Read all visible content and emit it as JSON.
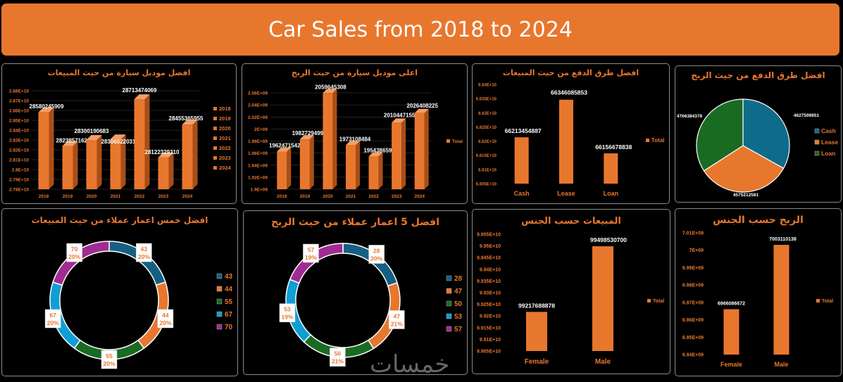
{
  "dashboard_title": "Car Sales from 2018 to 2024",
  "watermark": "خمسات",
  "colors": {
    "accent": "#e8772e",
    "dark_orange": "#a94e17",
    "blue": "#156082",
    "green": "#196b24",
    "cyan": "#0f9ed5",
    "purple": "#a02b93",
    "teal": "#0f6b8a"
  },
  "chart_data": [
    {
      "id": "c1",
      "type": "bar",
      "title": "افضل موديل سيارة من حيث المبيعات",
      "categories": [
        "2018",
        "2019",
        "2020",
        "2021",
        "2022",
        "2023",
        "2024"
      ],
      "values": [
        28580245909,
        28238571621,
        28300190683,
        28306022031,
        28713474069,
        28122329310,
        28455365955
      ],
      "data_labels": [
        "28580245909",
        "28238571621",
        "28300190683",
        "28306022031",
        "28713474069",
        "28122329310",
        "28455365955"
      ],
      "y_ticks": [
        "2.78E+10",
        "2.79E+10",
        "2.8E+10",
        "2.81E+10",
        "2.82E+10",
        "2.83E+10",
        "2.84E+10",
        "2.85E+10",
        "2.86E+10",
        "2.87E+10",
        "2.88E+10"
      ],
      "ylim": [
        27800000000,
        28800000000
      ],
      "legend": [
        "2018",
        "2019",
        "2020",
        "2021",
        "2022",
        "2023",
        "2024"
      ],
      "legend_position": "right"
    },
    {
      "id": "c2",
      "type": "bar",
      "title": "اعلى موديل سيارة من حيث الربح",
      "categories": [
        "2018",
        "2019",
        "2020",
        "2021",
        "2022",
        "2023",
        "2024"
      ],
      "values": [
        1962471542,
        1982729499,
        2059645308,
        1973108484,
        1954386598,
        2010447155,
        2026408225
      ],
      "data_labels": [
        "1962471542",
        "1982729499",
        "2059645308",
        "1973108484",
        "1954386598",
        "2010447155",
        "2026408225"
      ],
      "y_ticks": [
        "1.9E+09",
        "1.92E+09",
        "1.94E+09",
        "1.96E+09",
        "1.98E+09",
        "2E+09",
        "2.02E+09",
        "2.04E+09",
        "2.06E+09"
      ],
      "ylim": [
        1900000000,
        2060000000
      ],
      "legend": [
        "Total"
      ],
      "legend_position": "right"
    },
    {
      "id": "c3",
      "type": "bar",
      "title": "افضل طرق الدفع من حيث المبيعات",
      "categories": [
        "Cash",
        "Lease",
        "Loan"
      ],
      "values": [
        66213454887,
        66346085853,
        66156678838
      ],
      "data_labels": [
        "66213454887",
        "66346085853",
        "66156678838"
      ],
      "y_ticks": [
        "6.605E+10",
        "6.61E+10",
        "6.615E+10",
        "6.62E+10",
        "6.625E+10",
        "6.63E+10",
        "6.635E+10",
        "6.64E+10"
      ],
      "ylim": [
        66050000000,
        66400000000
      ],
      "legend": [
        "Total"
      ],
      "legend_position": "right"
    },
    {
      "id": "c4",
      "type": "pie",
      "title": "افضل طرق الدفع من جيث الربح",
      "categories": [
        "Cash",
        "Lease",
        "Loan"
      ],
      "values": [
        4627599851,
        4575212581,
        4766384378
      ],
      "data_labels": [
        "4627599851",
        "4575212581",
        "4766384378"
      ],
      "legend": [
        "Cash",
        "Lease",
        "Loan"
      ],
      "legend_position": "right"
    },
    {
      "id": "c5",
      "type": "pie",
      "title": "افضل خمس اعمار عملاء من حيث المبيعات",
      "categories": [
        "43",
        "44",
        "55",
        "67",
        "70"
      ],
      "values": [
        20,
        20,
        20,
        20,
        20
      ],
      "slice_labels": [
        [
          "43",
          "20%"
        ],
        [
          "44",
          "20%"
        ],
        [
          "55",
          "20%"
        ],
        [
          "67",
          "20%"
        ],
        [
          "70",
          "20%"
        ]
      ],
      "legend": [
        "43",
        "44",
        "55",
        "67",
        "70"
      ],
      "legend_position": "right"
    },
    {
      "id": "c6",
      "type": "pie",
      "title": "افضل 5 اعمار عملاء من حيث الربح",
      "categories": [
        "28",
        "47",
        "50",
        "53",
        "57"
      ],
      "values": [
        20,
        21,
        21,
        19,
        19
      ],
      "slice_labels": [
        [
          "28",
          "20%"
        ],
        [
          "47",
          "21%"
        ],
        [
          "50",
          "21%"
        ],
        [
          "53",
          "19%"
        ],
        [
          "57",
          "19%"
        ]
      ],
      "legend": [
        "28",
        "47",
        "50",
        "53",
        "57"
      ],
      "legend_position": "right"
    },
    {
      "id": "c7",
      "type": "bar",
      "title": "المبيعات حسب الجنس",
      "categories": [
        "Female",
        "Male"
      ],
      "values": [
        99217688878,
        99498530700
      ],
      "data_labels": [
        "99217688878",
        "99498530700"
      ],
      "y_ticks": [
        "9.905E+10",
        "9.91E+10",
        "9.915E+10",
        "9.92E+10",
        "9.925E+10",
        "9.93E+10",
        "9.935E+10",
        "9.94E+10",
        "9.945E+10",
        "9.95E+10",
        "9.955E+10"
      ],
      "ylim": [
        99050000000,
        99550000000
      ],
      "legend": [
        "Total"
      ],
      "legend_position": "right"
    },
    {
      "id": "c8",
      "type": "bar",
      "title": "الربح حسب الجنس",
      "categories": [
        "Female",
        "Male"
      ],
      "values": [
        6966086672,
        7003110138
      ],
      "data_labels": [
        "6966086672",
        "7003110138"
      ],
      "y_ticks": [
        "6.94E+09",
        "6.95E+09",
        "6.96E+09",
        "6.97E+09",
        "6.98E+09",
        "6.99E+09",
        "7E+09",
        "7.01E+09"
      ],
      "ylim": [
        6940000000,
        7010000000
      ],
      "legend": [
        "Total"
      ],
      "legend_position": "right"
    }
  ]
}
